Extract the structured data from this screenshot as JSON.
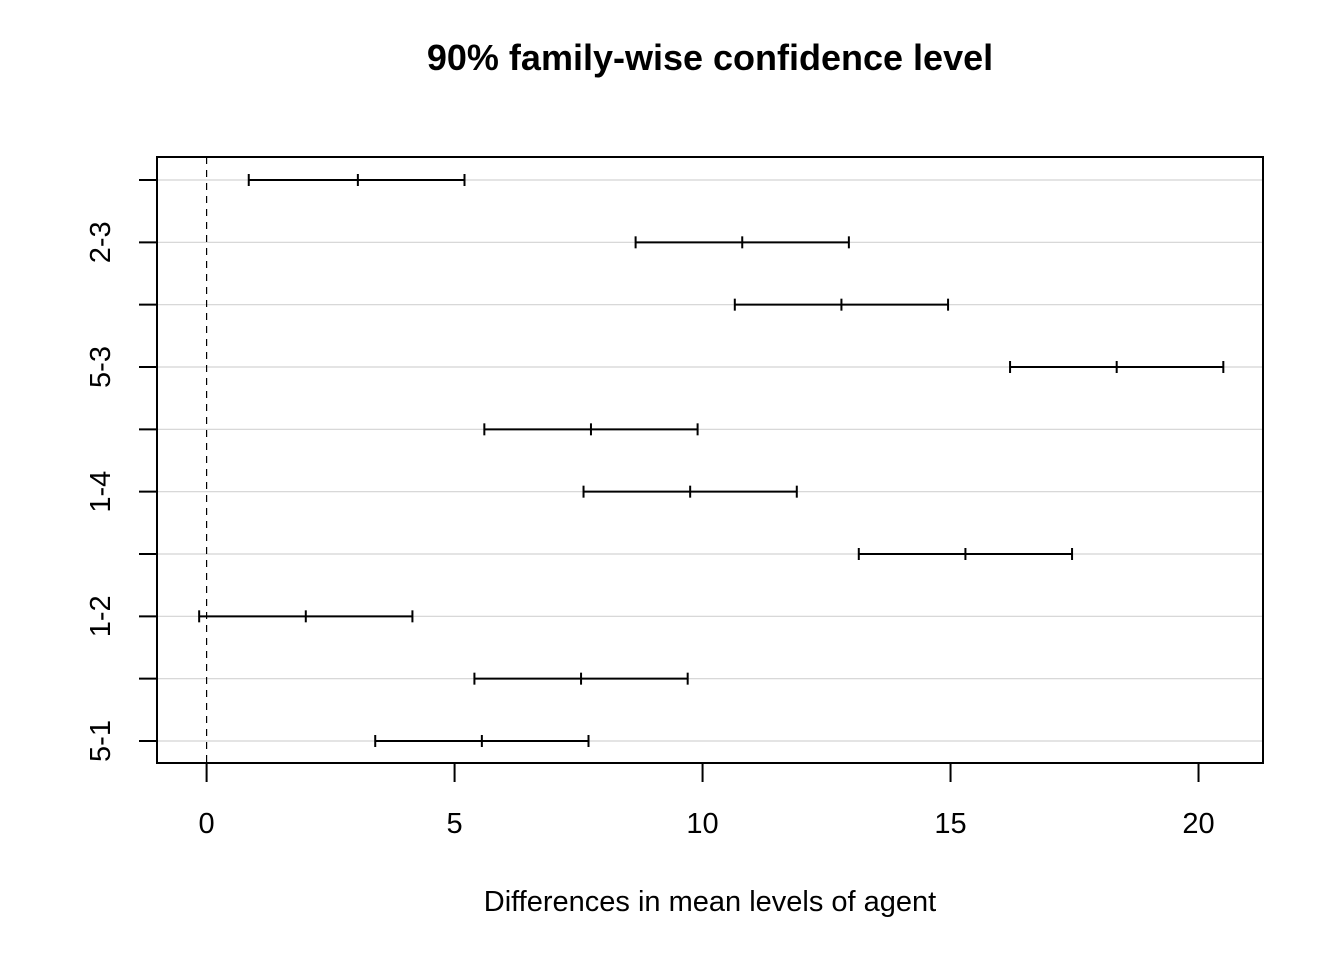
{
  "chart_data": {
    "type": "interval",
    "title": "90% family-wise confidence level",
    "xlabel": "Differences in mean levels of agent",
    "ylabel": "",
    "xlim": [
      -1,
      21.3
    ],
    "x_ticks": [
      0,
      5,
      10,
      15,
      20
    ],
    "reference_line": 0,
    "grid": true,
    "comparisons": [
      {
        "label": "",
        "lwr": 0.85,
        "diff": 3.05,
        "upr": 5.2
      },
      {
        "label": "2-3",
        "lwr": 8.65,
        "diff": 10.8,
        "upr": 12.95
      },
      {
        "label": "",
        "lwr": 10.65,
        "diff": 12.8,
        "upr": 14.95
      },
      {
        "label": "5-3",
        "lwr": 16.2,
        "diff": 18.35,
        "upr": 20.5
      },
      {
        "label": "",
        "lwr": 5.6,
        "diff": 7.75,
        "upr": 9.9
      },
      {
        "label": "1-4",
        "lwr": 7.6,
        "diff": 9.75,
        "upr": 11.9
      },
      {
        "label": "",
        "lwr": 13.15,
        "diff": 15.3,
        "upr": 17.45
      },
      {
        "label": "1-2",
        "lwr": -0.15,
        "diff": 2.0,
        "upr": 4.15
      },
      {
        "label": "",
        "lwr": 5.4,
        "diff": 7.55,
        "upr": 9.7
      },
      {
        "label": "5-1",
        "lwr": 3.4,
        "diff": 5.55,
        "upr": 7.7
      }
    ]
  }
}
